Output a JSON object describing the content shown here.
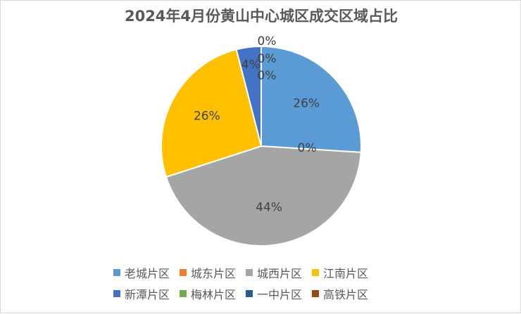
{
  "chart_data": {
    "type": "pie",
    "title": "2024年4月份黄山中心城区成交区域占比",
    "categories": [
      "老城片区",
      "城东片区",
      "城西片区",
      "江南片区",
      "新潭片区",
      "梅林片区",
      "一中片区",
      "高铁片区"
    ],
    "values": [
      26,
      0,
      44,
      26,
      4,
      0,
      0,
      0
    ],
    "labels": [
      "26%",
      "0%",
      "44%",
      "26%",
      "4%",
      "0%",
      "0%",
      "0%"
    ],
    "colors": [
      "#5B9BD5",
      "#ED7D31",
      "#A5A5A5",
      "#FFC000",
      "#4472C4",
      "#70AD47",
      "#255E91",
      "#9E480E"
    ],
    "legend_position": "bottom"
  }
}
